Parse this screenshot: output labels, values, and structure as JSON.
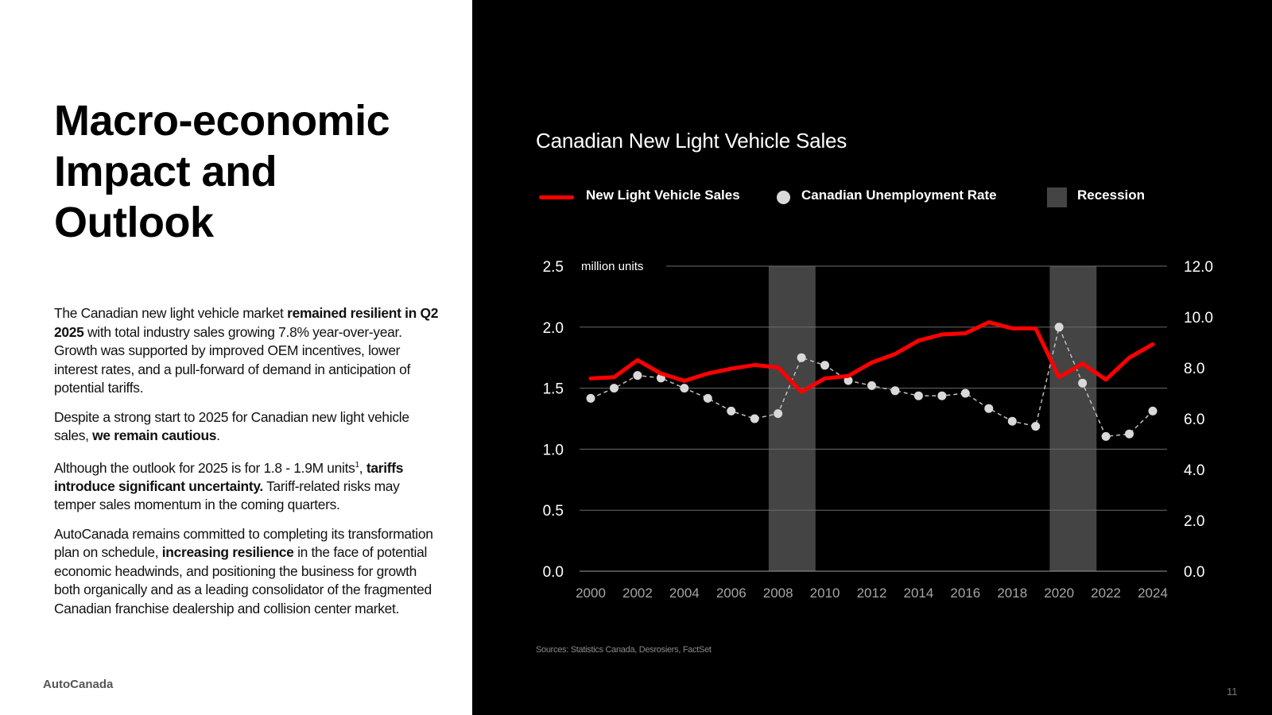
{
  "slide": {
    "title_lines": [
      "Macro-economic",
      "Impact and",
      "Outlook"
    ],
    "brand": "AutoCanada",
    "page_number": "11",
    "sources": "Sources: Statistics Canada, Desrosiers, FactSet"
  },
  "body": {
    "p1": {
      "a": "The Canadian new light vehicle market ",
      "b": "remained resilient in Q2 2025",
      "c": " with total industry sales growing 7.8% year-over-year. Growth was supported by improved OEM incentives, lower interest rates, and a pull-forward of demand in anticipation of potential tariffs."
    },
    "p2": {
      "a": "Despite a strong start to 2025 for Canadian new light vehicle sales, ",
      "b": "we remain cautious",
      "c": "."
    },
    "p3": {
      "a": "Although the outlook for 2025 is for 1.8 - 1.9M units",
      "sup": "1",
      "a2": ", ",
      "b": "tariffs introduce significant uncertainty.",
      "c": " Tariff-related risks may temper sales momentum in the coming quarters."
    },
    "p4": {
      "a": "AutoCanada remains committed to completing its transformation plan on schedule, ",
      "b": "increasing resilience",
      "c": " in the face of potential economic headwinds, and positioning the business for growth both organically and as a leading consolidator of the fragmented Canadian franchise dealership and collision center market."
    }
  },
  "legend": {
    "sales": "New Light Vehicle Sales",
    "unemployment": "Canadian Unemployment Rate",
    "recession": "Recession"
  },
  "colors": {
    "sales_line": "#ff0000",
    "unemployment": "#d9d9d9",
    "recession": "#444444",
    "grid": "#6b6b6b",
    "axis_text": "#ffffff",
    "tick_text": "#a6a6a6"
  },
  "chart_data": {
    "type": "line",
    "title": "Canadian New Light Vehicle Sales",
    "x": [
      2000,
      2001,
      2002,
      2003,
      2004,
      2005,
      2006,
      2007,
      2008,
      2009,
      2010,
      2011,
      2012,
      2013,
      2014,
      2015,
      2016,
      2017,
      2018,
      2019,
      2020,
      2021,
      2022,
      2023,
      2024
    ],
    "x_tick_labels": [
      "2000",
      "2002",
      "2004",
      "2006",
      "2008",
      "2010",
      "2012",
      "2014",
      "2016",
      "2018",
      "2020",
      "2022",
      "2024"
    ],
    "y_left": {
      "label": "million units",
      "range": [
        0,
        2.5
      ],
      "ticks": [
        "0.0",
        "0.5",
        "1.0",
        "1.5",
        "2.0",
        "2.5"
      ]
    },
    "y_right": {
      "range": [
        0,
        12
      ],
      "ticks": [
        "0.0",
        "2.0",
        "4.0",
        "6.0",
        "8.0",
        "10.0",
        "12.0"
      ]
    },
    "recessions": [
      [
        2007.6,
        2009.6
      ],
      [
        2019.6,
        2021.6
      ]
    ],
    "series": [
      {
        "name": "New Light Vehicle Sales",
        "axis": "left",
        "style": "solid-line",
        "values": [
          1.58,
          1.59,
          1.73,
          1.62,
          1.56,
          1.62,
          1.66,
          1.69,
          1.67,
          1.47,
          1.58,
          1.6,
          1.71,
          1.78,
          1.89,
          1.94,
          1.95,
          2.04,
          1.99,
          1.99,
          1.59,
          1.7,
          1.57,
          1.75,
          1.86
        ]
      },
      {
        "name": "Canadian Unemployment Rate",
        "axis": "right",
        "style": "dashed-dots",
        "values": [
          6.8,
          7.2,
          7.7,
          7.6,
          7.2,
          6.8,
          6.3,
          6.0,
          6.2,
          8.4,
          8.1,
          7.5,
          7.3,
          7.1,
          6.9,
          6.9,
          7.0,
          6.4,
          5.9,
          5.7,
          9.6,
          7.4,
          5.3,
          5.4,
          6.3
        ]
      }
    ]
  }
}
